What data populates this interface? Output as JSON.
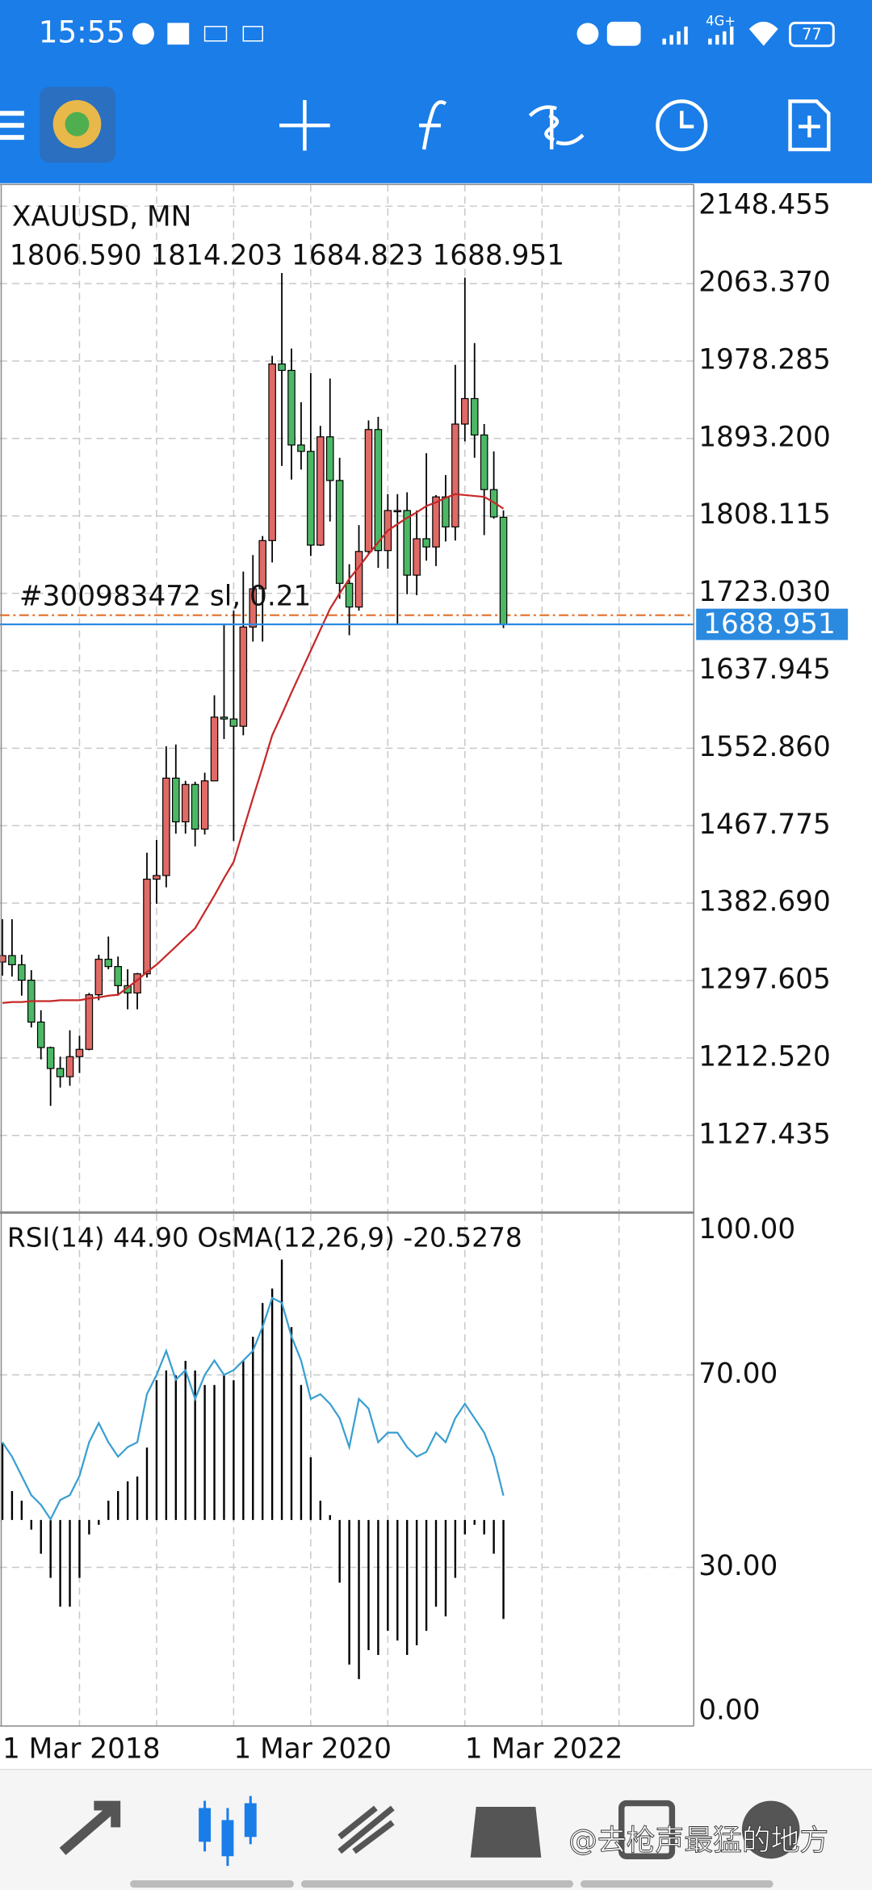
{
  "status_bar": {
    "time": "15:55",
    "network": "4G+",
    "battery": "77"
  },
  "watermark": "@去枪声最猛的地方",
  "chart_data": {
    "type": "candlestick",
    "title": "XAUUSD, MN",
    "ohlc_text": "1806.590 1814.203 1684.823 1688.951",
    "categories": [
      "1 Mar 2018",
      null,
      null,
      null,
      null,
      null,
      null,
      null,
      null,
      null,
      null,
      null,
      null,
      null,
      null,
      null,
      null,
      null,
      null,
      null,
      null,
      null,
      null,
      null,
      "1 Mar 2020",
      null,
      null,
      null,
      null,
      null,
      null,
      null,
      null,
      null,
      null,
      null,
      null,
      null,
      null,
      null,
      null,
      null,
      null,
      null,
      null,
      null,
      null,
      null,
      "1 Mar 2022",
      null,
      null,
      null,
      null
    ],
    "open": [
      1318,
      1325,
      1315,
      1298,
      1252,
      1224,
      1201,
      1192,
      1214,
      1222,
      1282,
      1321,
      1313,
      1292,
      1284,
      1305,
      1409,
      1413,
      1520,
      1472,
      1513,
      1464,
      1517,
      1587,
      1585,
      1577,
      1686,
      1728,
      1781,
      1975,
      1968,
      1886,
      1879,
      1776,
      1895,
      1847,
      1734,
      1708,
      1769,
      1903,
      1770,
      1814,
      1814,
      1743,
      1783,
      1774,
      1829,
      1796,
      1909,
      1937,
      1897,
      1837,
      1806.59
    ],
    "high": [
      1365,
      1365,
      1326,
      1309,
      1265,
      1225,
      1214,
      1243,
      1237,
      1284,
      1326,
      1346,
      1324,
      1310,
      1306,
      1438,
      1452,
      1555,
      1557,
      1517,
      1516,
      1526,
      1611,
      1689,
      1704,
      1747,
      1765,
      1786,
      1984,
      2075,
      1992,
      1933,
      1965,
      1907,
      1959,
      1872,
      1755,
      1798,
      1913,
      1917,
      1832,
      1832,
      1834,
      1814,
      1877,
      1831,
      1853,
      1974,
      2070,
      1998,
      1909,
      1879,
      1814.203
    ],
    "low": [
      1303,
      1302,
      1281,
      1246,
      1211,
      1160,
      1180,
      1182,
      1196,
      1221,
      1276,
      1310,
      1281,
      1266,
      1266,
      1301,
      1382,
      1400,
      1459,
      1459,
      1445,
      1458,
      1517,
      1563,
      1451,
      1567,
      1670,
      1670,
      1757,
      1863,
      1848,
      1859,
      1764,
      1775,
      1802,
      1717,
      1677,
      1704,
      1766,
      1751,
      1750,
      1688,
      1722,
      1721,
      1759,
      1753,
      1780,
      1781,
      1890,
      1872,
      1787,
      1805,
      1684.823
    ],
    "close": [
      1325,
      1315,
      1298,
      1252,
      1224,
      1201,
      1192,
      1214,
      1222,
      1282,
      1321,
      1313,
      1292,
      1284,
      1305,
      1409,
      1413,
      1520,
      1472,
      1513,
      1464,
      1517,
      1587,
      1585,
      1577,
      1686,
      1728,
      1781,
      1975,
      1968,
      1886,
      1879,
      1776,
      1895,
      1847,
      1734,
      1708,
      1769,
      1903,
      1770,
      1814,
      1814,
      1743,
      1783,
      1774,
      1829,
      1796,
      1909,
      1937,
      1897,
      1837,
      1807,
      1688.951
    ],
    "up_color": "#e06a66",
    "down_color": "#4cb866",
    "wick_color": "#000000",
    "ma": {
      "color": "#c62828",
      "values": [
        1273,
        1274,
        1274,
        1275,
        1275,
        1275,
        1276,
        1276,
        1276,
        1278,
        1279,
        1281,
        1282,
        1290,
        1298,
        1307,
        1315,
        1325,
        1335,
        1345,
        1355,
        1373,
        1391,
        1410,
        1428,
        1463,
        1498,
        1532,
        1567,
        1590,
        1614,
        1637,
        1660,
        1683,
        1706,
        1723,
        1739,
        1752,
        1766,
        1779,
        1792,
        1799,
        1806,
        1812,
        1819,
        1823,
        1828,
        1832,
        1831,
        1830,
        1829,
        1823,
        1816
      ]
    },
    "ylim": [
      1044,
      2172.29
    ],
    "yticks": [
      2148.455,
      {
        "value": 2063.37,
        "label": "2063.370"
      },
      1978.285,
      {
        "value": 1893.2,
        "label": "1893.200"
      },
      1808.115,
      {
        "value": 1723.03,
        "label": "1723.030"
      },
      1637.945,
      {
        "value": 1552.86,
        "label": "1552.860"
      },
      1467.775,
      {
        "value": 1382.69,
        "label": "1382.690"
      },
      1297.605,
      {
        "value": 1212.52,
        "label": "1212.520"
      },
      1127.435
    ],
    "grid": true,
    "order_line": {
      "label": "#300983472 sl, 0.21",
      "value": 1699,
      "color": "#e0702a"
    },
    "price_tag": {
      "value": 1688.951,
      "label": "1688.951",
      "color": "#2a8ae0"
    },
    "indicator_panel": {
      "label": "RSI(14) 44.90 OsMA(12,26,9) -20.5278",
      "ylim": [
        -3,
        103.5
      ],
      "yticks": [
        {
          "value": 100,
          "label": "100.00"
        },
        {
          "value": 70,
          "label": "70.00"
        },
        {
          "value": 30,
          "label": "30.00"
        },
        {
          "value": 0,
          "label": "0.00"
        }
      ],
      "y2lim": [
        -42.75,
        63.5
      ],
      "rsi": {
        "color": "#3a9fd0",
        "values": [
          56,
          53,
          49,
          45,
          43,
          40,
          44,
          45,
          49,
          56,
          60,
          56,
          53,
          55,
          56,
          66,
          70,
          75,
          69,
          71,
          65,
          70,
          73,
          70,
          71,
          73,
          75,
          80,
          86,
          85,
          78,
          73,
          65,
          66,
          64,
          61,
          55,
          65,
          63,
          56,
          58,
          58,
          55,
          53,
          54,
          58,
          56,
          61,
          64,
          61,
          58,
          53,
          44.9
        ]
      },
      "osma": {
        "color": "#000000",
        "axis": "y2",
        "values": [
          16,
          6,
          4,
          -2,
          -7,
          -12,
          -18,
          -18,
          -12,
          -3,
          -1,
          4,
          6,
          8,
          9,
          15,
          29,
          31,
          30,
          33,
          31,
          28,
          28,
          30,
          29,
          33,
          38,
          45,
          48,
          54,
          40,
          28,
          13,
          4,
          1,
          -13,
          -30,
          -33,
          -27,
          -28,
          -23,
          -25,
          -28,
          -26,
          -23,
          -18,
          -20,
          -12,
          -3,
          -1,
          -3,
          -7,
          -20.5278
        ]
      }
    }
  }
}
